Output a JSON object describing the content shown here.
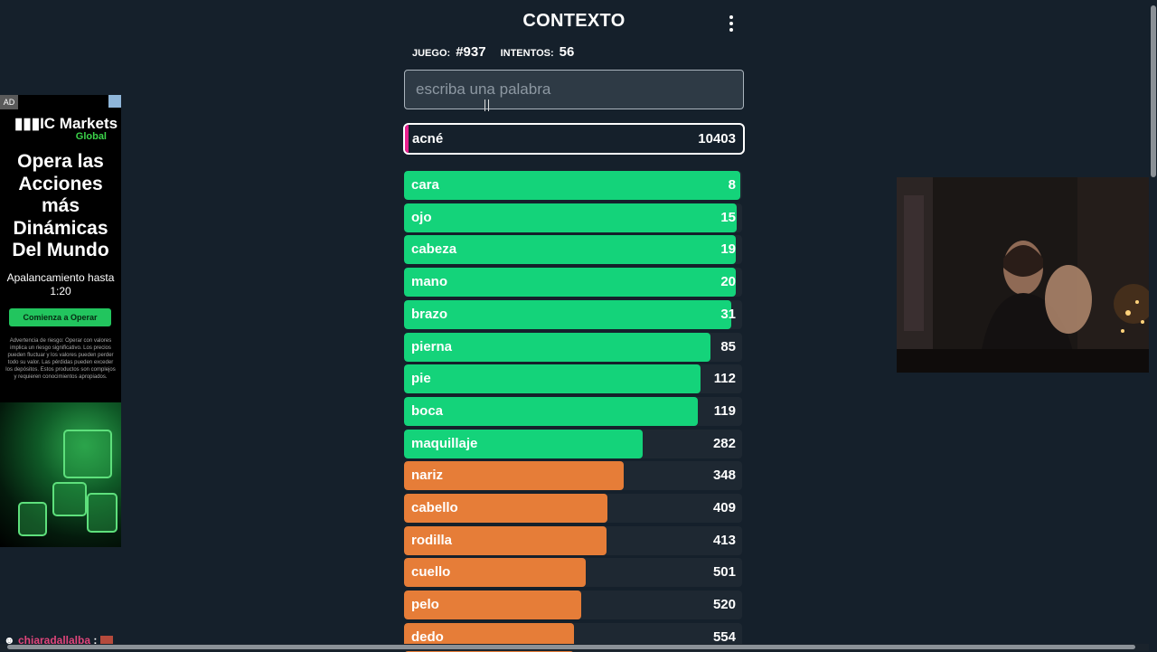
{
  "header": {
    "title": "CONTEXTO",
    "menu_icon": "vertical-dots-icon"
  },
  "stats": {
    "game_label": "JUEGO:",
    "game_value": "#937",
    "attempts_label": "INTENTOS:",
    "attempts_value": "56"
  },
  "input": {
    "placeholder": "escriba una palabra",
    "value": ""
  },
  "current_guess": {
    "word": "acné",
    "rank": "10403"
  },
  "colors": {
    "green": "#14d37a",
    "orange": "#e67d38",
    "red": "#e8208f",
    "background": "#15202b"
  },
  "guesses": [
    {
      "word": "cara",
      "rank": "8",
      "fill": 0.995,
      "color": "green"
    },
    {
      "word": "ojo",
      "rank": "15",
      "fill": 0.985,
      "color": "green"
    },
    {
      "word": "cabeza",
      "rank": "19",
      "fill": 0.98,
      "color": "green"
    },
    {
      "word": "mano",
      "rank": "20",
      "fill": 0.98,
      "color": "green"
    },
    {
      "word": "brazo",
      "rank": "31",
      "fill": 0.967,
      "color": "green"
    },
    {
      "word": "pierna",
      "rank": "85",
      "fill": 0.906,
      "color": "green"
    },
    {
      "word": "pie",
      "rank": "112",
      "fill": 0.876,
      "color": "green"
    },
    {
      "word": "boca",
      "rank": "119",
      "fill": 0.87,
      "color": "green"
    },
    {
      "word": "maquillaje",
      "rank": "282",
      "fill": 0.707,
      "color": "green"
    },
    {
      "word": "nariz",
      "rank": "348",
      "fill": 0.65,
      "color": "orange"
    },
    {
      "word": "cabello",
      "rank": "409",
      "fill": 0.602,
      "color": "orange"
    },
    {
      "word": "rodilla",
      "rank": "413",
      "fill": 0.599,
      "color": "orange"
    },
    {
      "word": "cuello",
      "rank": "501",
      "fill": 0.537,
      "color": "orange"
    },
    {
      "word": "pelo",
      "rank": "520",
      "fill": 0.524,
      "color": "orange"
    },
    {
      "word": "dedo",
      "rank": "554",
      "fill": 0.503,
      "color": "orange"
    }
  ],
  "ad": {
    "badge": "AD",
    "logo": "IC Markets",
    "logo_sub": "Global",
    "headline": "Opera las Acciones más Dinámicas Del Mundo",
    "subtext": "Apalancamiento hasta 1:20",
    "cta": "Comienza a Operar",
    "disclaimer": "Advertencia de riesgo: Operar con valores implica un riesgo significativo. Los precios pueden fluctuar y los valores pueden perder todo su valor. Las pérdidas pueden exceder los depósitos. Estos productos son complejos y requieren conocimientos apropiados."
  },
  "chat": {
    "user": "chiaradallalba",
    "separator": ":"
  }
}
